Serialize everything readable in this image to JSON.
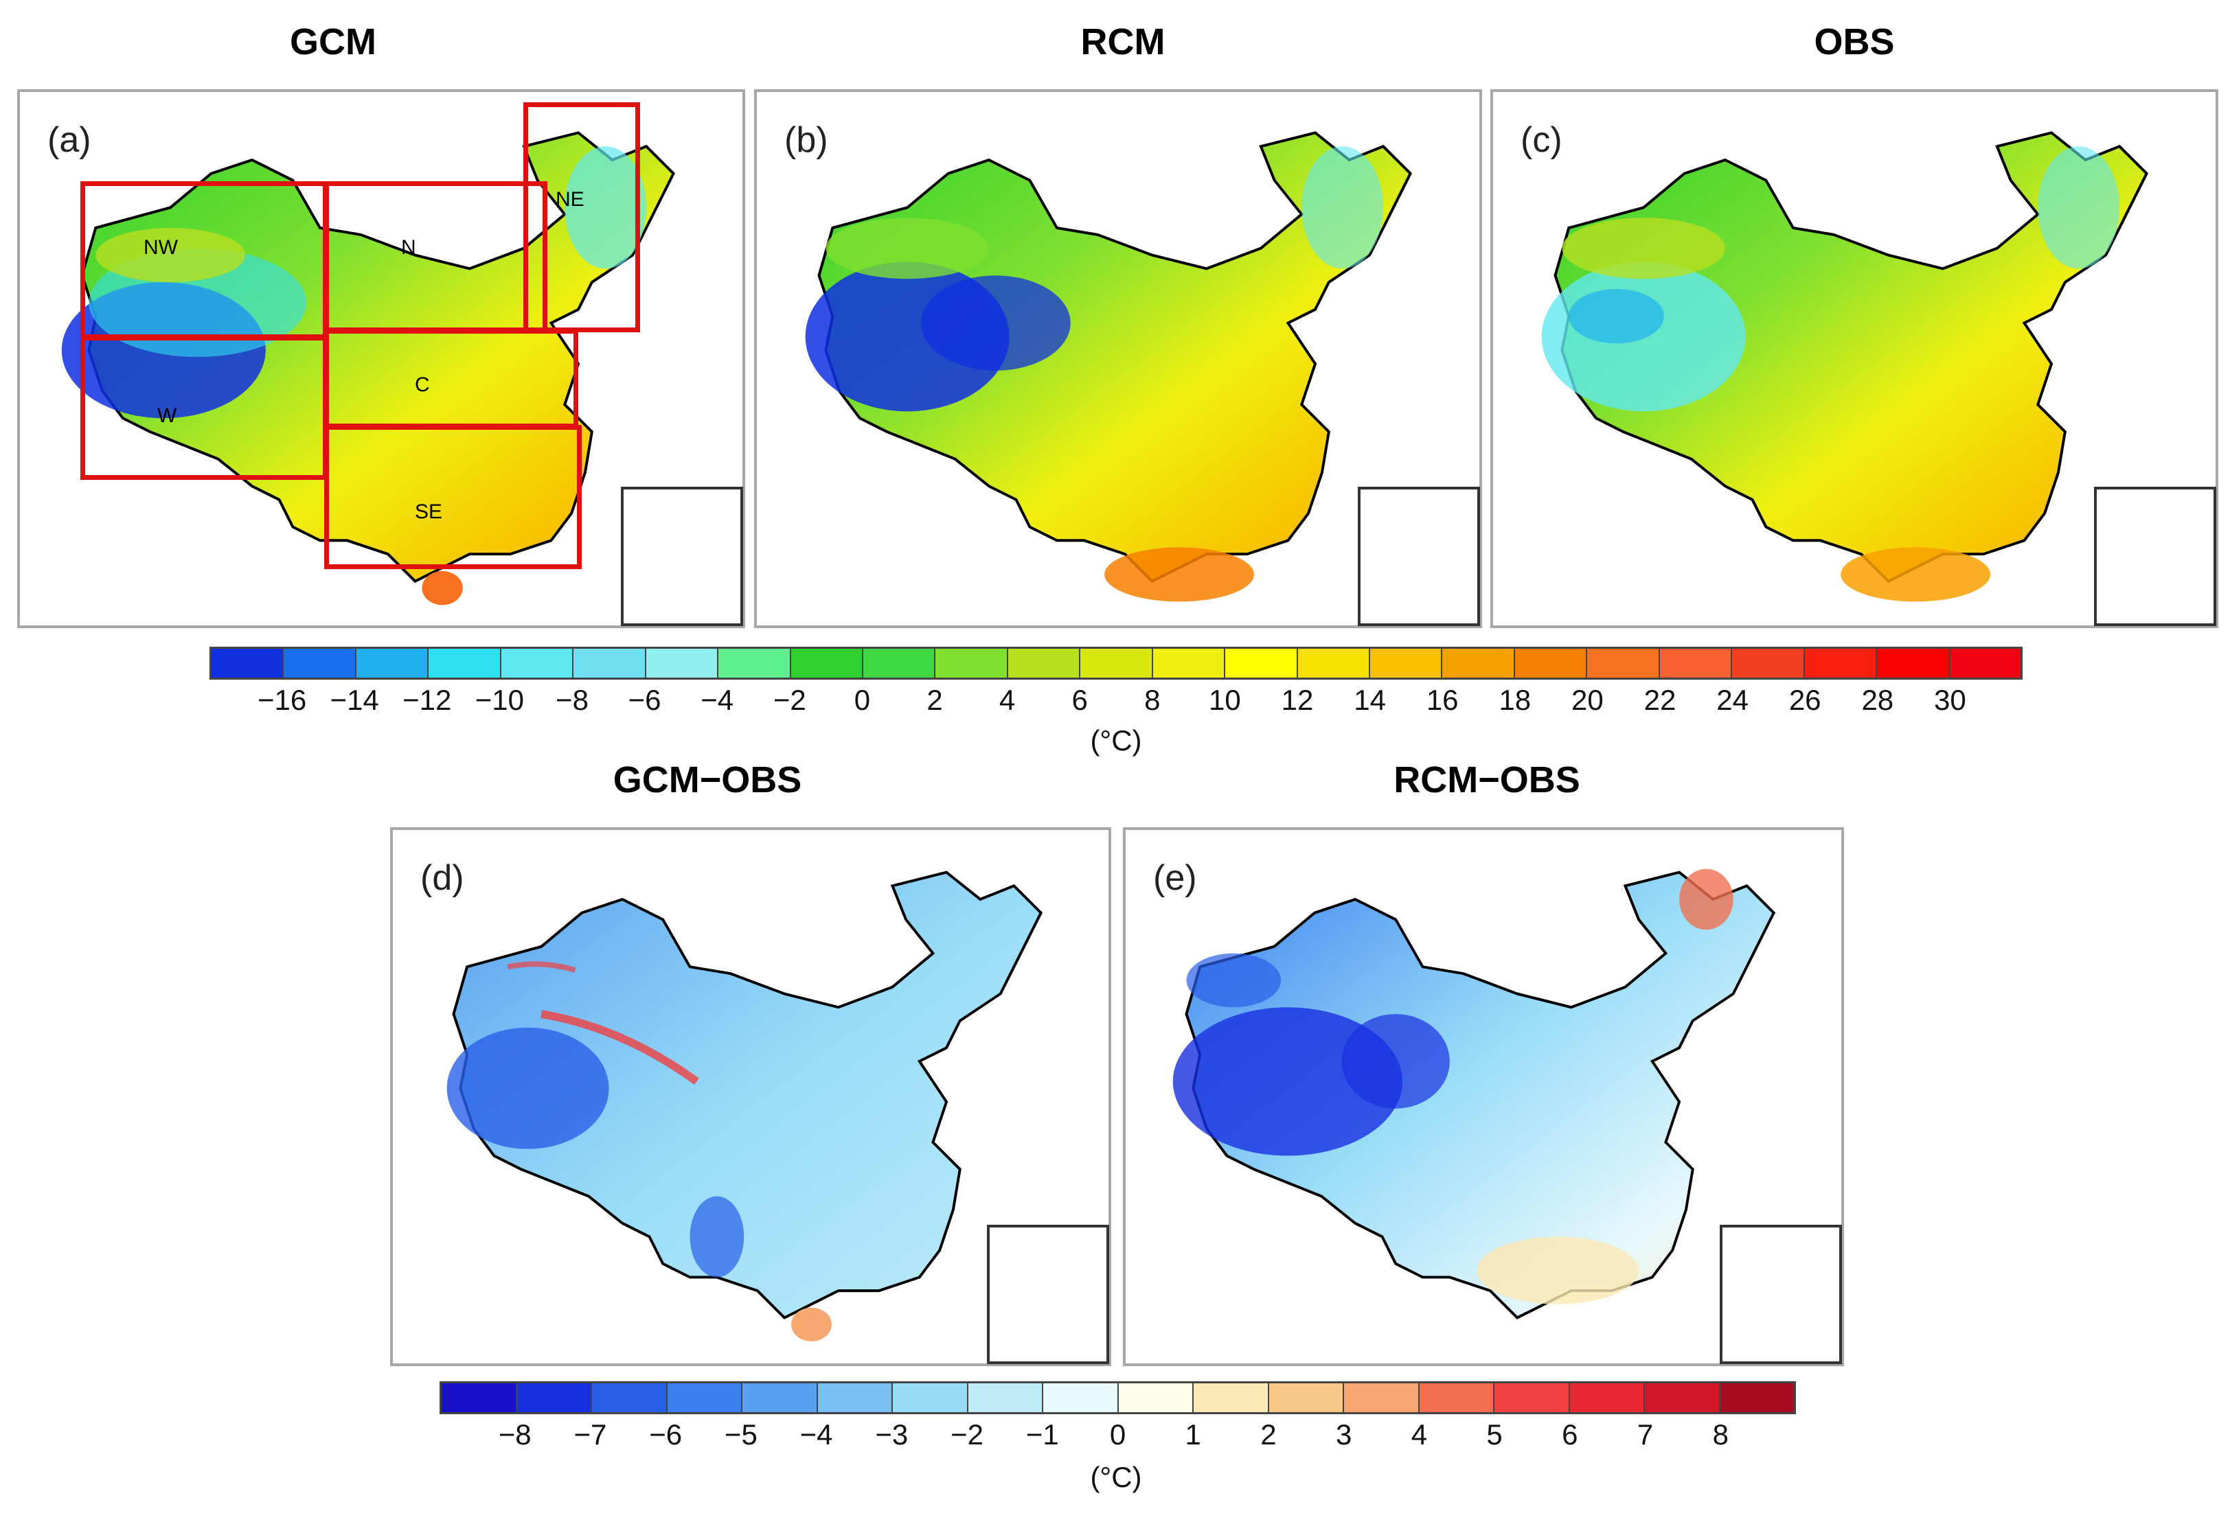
{
  "titles": {
    "gcm": "GCM",
    "rcm": "RCM",
    "obs": "OBS",
    "gcm_obs": "GCM−OBS",
    "rcm_obs": "RCM−OBS"
  },
  "panels": {
    "a": "(a)",
    "b": "(b)",
    "c": "(c)",
    "d": "(d)",
    "e": "(e)"
  },
  "regions": {
    "nw": "NW",
    "n": "N",
    "ne": "NE",
    "c": "C",
    "w": "W",
    "se": "SE"
  },
  "colorbar_top": {
    "colors": [
      "#1030e0",
      "#1870f0",
      "#20b0f0",
      "#30e0f0",
      "#60e8f0",
      "#70e0f0",
      "#90f0f0",
      "#60f090",
      "#30d030",
      "#40d840",
      "#80e030",
      "#b8e020",
      "#d8e810",
      "#f0f010",
      "#ffff00",
      "#f8e000",
      "#f8c000",
      "#f8a000",
      "#f88000",
      "#f87020",
      "#f86030",
      "#f04020",
      "#f82010",
      "#f80000",
      "#f00010"
    ],
    "ticks": [
      "−16",
      "−14",
      "−12",
      "−10",
      "−8",
      "−6",
      "−4",
      "−2",
      "0",
      "2",
      "4",
      "6",
      "8",
      "10",
      "12",
      "14",
      "16",
      "18",
      "20",
      "22",
      "24",
      "26",
      "28",
      "30"
    ],
    "unit": "(°C)"
  },
  "colorbar_bottom": {
    "colors": [
      "#1810c8",
      "#1830e0",
      "#2860e8",
      "#3c80f0",
      "#58a0f0",
      "#78c0f4",
      "#98dcf8",
      "#c0ecfa",
      "#e8f8fc",
      "#fffcea",
      "#fce8b4",
      "#f8c888",
      "#f8a870",
      "#f07050",
      "#f04040",
      "#e82830",
      "#d01828",
      "#a80c20"
    ],
    "ticks": [
      "−8",
      "−7",
      "−6",
      "−5",
      "−4",
      "−3",
      "−2",
      "−1",
      "0",
      "1",
      "2",
      "3",
      "4",
      "5",
      "6",
      "7",
      "8"
    ],
    "unit": "(°C)"
  }
}
